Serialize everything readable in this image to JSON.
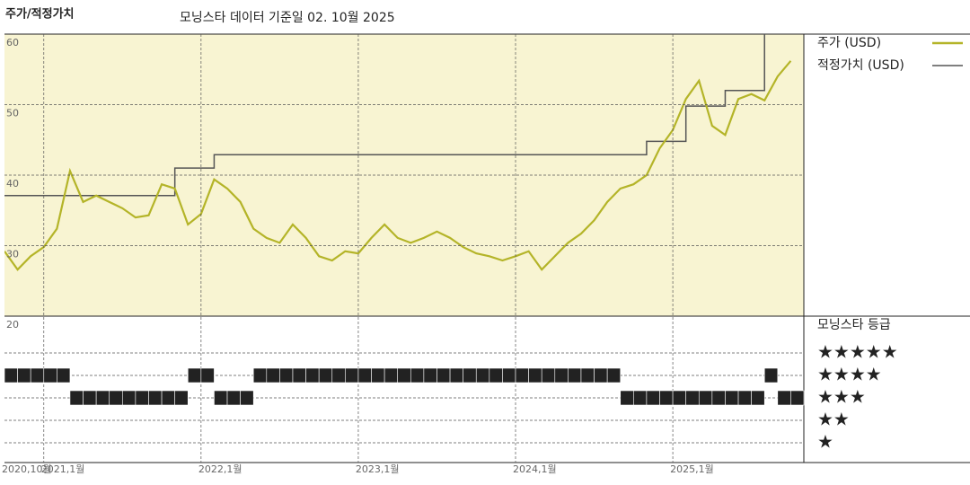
{
  "chart_data": {
    "type": "line",
    "title": "주가/적정가치",
    "subtitle": "모닝스타 데이터 기준일 02. 10월 2025",
    "x": [
      "2020-10",
      "2020-11",
      "2020-12",
      "2021-01",
      "2021-02",
      "2021-03",
      "2021-04",
      "2021-05",
      "2021-06",
      "2021-07",
      "2021-08",
      "2021-09",
      "2021-10",
      "2021-11",
      "2021-12",
      "2022-01",
      "2022-02",
      "2022-03",
      "2022-04",
      "2022-05",
      "2022-06",
      "2022-07",
      "2022-08",
      "2022-09",
      "2022-10",
      "2022-11",
      "2022-12",
      "2023-01",
      "2023-02",
      "2023-03",
      "2023-04",
      "2023-05",
      "2023-06",
      "2023-07",
      "2023-08",
      "2023-09",
      "2023-10",
      "2023-11",
      "2023-12",
      "2024-01",
      "2024-02",
      "2024-03",
      "2024-04",
      "2024-05",
      "2024-06",
      "2024-07",
      "2024-08",
      "2024-09",
      "2024-10",
      "2024-11",
      "2024-12",
      "2025-01",
      "2025-02",
      "2025-03",
      "2025-04",
      "2025-05",
      "2025-06",
      "2025-07",
      "2025-08",
      "2025-09",
      "2025-10"
    ],
    "xlim": [
      "2020-10",
      "2025-11"
    ],
    "xticks": [
      {
        "value": "2020-10",
        "label": "2020,10월"
      },
      {
        "value": "2021-01",
        "label": "2021,1월"
      },
      {
        "value": "2022-01",
        "label": "2022,1월"
      },
      {
        "value": "2023-01",
        "label": "2023,1월"
      },
      {
        "value": "2024-01",
        "label": "2024,1월"
      },
      {
        "value": "2025-01",
        "label": "2025,1월"
      }
    ],
    "ylim": [
      20,
      60
    ],
    "yticks": [
      20,
      30,
      40,
      50,
      60
    ],
    "grid": true,
    "series": [
      {
        "name": "주가 (USD)",
        "color": "#b4b428",
        "values": [
          29.2,
          26.6,
          28.5,
          29.8,
          32.4,
          40.6,
          36.2,
          37.1,
          36.2,
          35.3,
          34.0,
          34.3,
          38.7,
          38.1,
          33.0,
          34.5,
          39.4,
          38.1,
          36.2,
          32.4,
          31.1,
          30.4,
          33.0,
          31.1,
          28.5,
          27.9,
          29.2,
          28.9,
          31.1,
          33.0,
          31.1,
          30.4,
          31.1,
          32.0,
          31.1,
          29.8,
          28.9,
          28.5,
          27.9,
          28.5,
          29.2,
          26.6,
          28.5,
          30.4,
          31.7,
          33.6,
          36.2,
          38.1,
          38.7,
          40.0,
          43.8,
          46.4,
          50.8,
          53.4,
          47.0,
          45.7,
          50.8,
          51.5,
          50.6,
          54.0,
          56.2
        ]
      },
      {
        "name": "적정가치 (USD)",
        "color": "#555555",
        "step": true,
        "x": [
          "2020-10",
          "2021-11",
          "2022-02",
          "2024-11",
          "2025-02",
          "2025-05",
          "2025-08",
          "2025-10"
        ],
        "values": [
          37.1,
          41.0,
          42.9,
          44.8,
          49.8,
          52.0,
          62,
          62
        ]
      }
    ],
    "rating": {
      "title": "모닝스타 등급",
      "color": "#222222",
      "levels": [
        "★★★★★",
        "★★★★",
        "★★★",
        "★★",
        "★"
      ],
      "values": [
        4,
        4,
        4,
        4,
        4,
        3,
        3,
        3,
        3,
        3,
        3,
        3,
        3,
        3,
        4,
        4,
        3,
        3,
        3,
        4,
        4,
        4,
        4,
        4,
        4,
        4,
        4,
        4,
        4,
        4,
        4,
        4,
        4,
        4,
        4,
        4,
        4,
        4,
        4,
        4,
        4,
        4,
        4,
        4,
        4,
        4,
        4,
        3,
        3,
        3,
        3,
        3,
        3,
        3,
        3,
        3,
        3,
        3,
        4,
        3,
        3
      ]
    }
  }
}
